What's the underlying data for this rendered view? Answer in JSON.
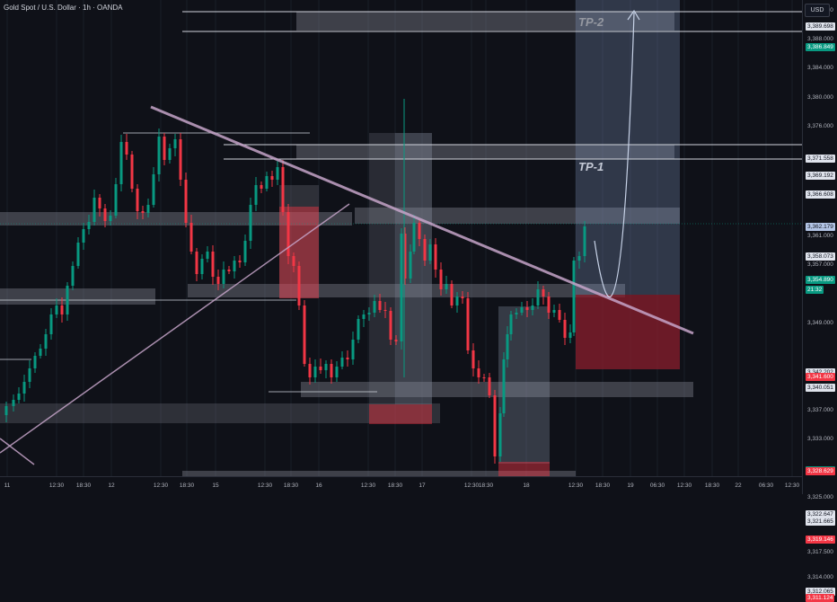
{
  "header": {
    "symbol_title": "Gold Spot / U.S. Dollar · 1h · OANDA",
    "currency_button": "USD"
  },
  "annotations": {
    "tp1": "TP-1",
    "tp2": "TP-2"
  },
  "price_axis": {
    "ticks": [
      {
        "price": 3392.0,
        "label": "3,392.000",
        "bg": "",
        "fg": "#b2b5be"
      },
      {
        "price": 3389.698,
        "label": "3,389.698",
        "bg": "#dfe3ec",
        "fg": "#131722"
      },
      {
        "price": 3388.0,
        "label": "3,388.000",
        "bg": "",
        "fg": "#b2b5be"
      },
      {
        "price": 3386.849,
        "label": "3,386.849",
        "bg": "#089981",
        "fg": "#ffffff"
      },
      {
        "price": 3384.0,
        "label": "3,384.000",
        "bg": "",
        "fg": "#b2b5be"
      },
      {
        "price": 3380.0,
        "label": "3,380.000",
        "bg": "",
        "fg": "#b2b5be"
      },
      {
        "price": 3376.0,
        "label": "3,376.000",
        "bg": "",
        "fg": "#b2b5be"
      },
      {
        "price": 3371.558,
        "label": "3,371.558",
        "bg": "#dfe3ec",
        "fg": "#131722"
      },
      {
        "price": 3369.192,
        "label": "3,369.192",
        "bg": "#dfe3ec",
        "fg": "#131722"
      },
      {
        "price": 3366.608,
        "label": "3,366.608",
        "bg": "#dfe3ec",
        "fg": "#131722"
      },
      {
        "price": 3362.179,
        "label": "3,362.179",
        "bg": "#b3c5e6",
        "fg": "#131722"
      },
      {
        "price": 3361.0,
        "label": "3,361.000",
        "bg": "",
        "fg": "#b2b5be"
      },
      {
        "price": 3358.073,
        "label": "3,358.073",
        "bg": "#dfe3ec",
        "fg": "#131722"
      },
      {
        "price": 3357.0,
        "label": "3,357.000",
        "bg": "",
        "fg": "#b2b5be"
      },
      {
        "price": 3354.89,
        "label": "3,354.890",
        "bg": "#089981",
        "fg": "#ffffff"
      },
      {
        "price": 3353.5,
        "label": "21:32",
        "bg": "#089981",
        "fg": "#ffffff"
      },
      {
        "price": 3349.0,
        "label": "3,349.000",
        "bg": "",
        "fg": "#b2b5be"
      },
      {
        "price": 3342.202,
        "label": "3,342.202",
        "bg": "#dfe3ec",
        "fg": "#131722"
      },
      {
        "price": 3341.6,
        "label": "3,341.600",
        "bg": "#f23645",
        "fg": "#ffffff"
      },
      {
        "price": 3340.051,
        "label": "3,340.051",
        "bg": "#dfe3ec",
        "fg": "#131722"
      },
      {
        "price": 3337.0,
        "label": "3,337.000",
        "bg": "",
        "fg": "#b2b5be"
      },
      {
        "price": 3333.0,
        "label": "3,333.000",
        "bg": "",
        "fg": "#b2b5be"
      },
      {
        "price": 3328.755,
        "label": "3,328.755",
        "bg": "#089981",
        "fg": "#ffffff"
      },
      {
        "price": 3328.629,
        "label": "3,328.629",
        "bg": "#f23645",
        "fg": "#ffffff"
      },
      {
        "price": 3325.0,
        "label": "3,325.000",
        "bg": "",
        "fg": "#b2b5be"
      },
      {
        "price": 3322.647,
        "label": "3,322.647",
        "bg": "#dfe3ec",
        "fg": "#131722"
      },
      {
        "price": 3321.665,
        "label": "3,321.665",
        "bg": "#dfe3ec",
        "fg": "#131722"
      },
      {
        "price": 3319.146,
        "label": "3,319.146",
        "bg": "#f23645",
        "fg": "#ffffff"
      },
      {
        "price": 3317.5,
        "label": "3,317.500",
        "bg": "",
        "fg": "#b2b5be"
      },
      {
        "price": 3314.0,
        "label": "3,314.000",
        "bg": "",
        "fg": "#b2b5be"
      },
      {
        "price": 3312.065,
        "label": "3,312.065",
        "bg": "#dfe3ec",
        "fg": "#131722"
      },
      {
        "price": 3311.124,
        "label": "3,311.124",
        "bg": "#f23645",
        "fg": "#ffffff"
      }
    ]
  },
  "time_axis": {
    "labels": [
      "11",
      "12:30",
      "18:30",
      "12",
      "12:30",
      "18:30",
      "15",
      "12:30",
      "18:30",
      "16",
      "12:30",
      "18:30",
      "17",
      "12:30",
      "18:30",
      "18",
      "12:30",
      "18:30",
      "19",
      "06:30",
      "12:30",
      "18:30",
      "22",
      "06:30",
      "12:30"
    ]
  },
  "colors": {
    "background": "#0f1118",
    "bull": "#089981",
    "bear": "#f23645",
    "trendline": "#c5a5c9",
    "zone": "#787b86"
  }
}
